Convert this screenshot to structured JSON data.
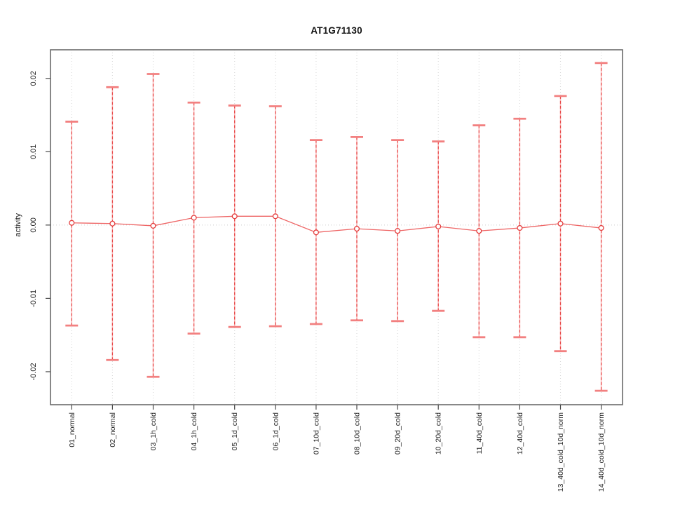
{
  "page": {
    "background": "#ffffff"
  },
  "chart_data": {
    "type": "line",
    "subtype": "errorbar-means",
    "title": "AT1G71130",
    "xlabel": "",
    "ylabel": "activity",
    "legend": "none",
    "categories": [
      "01_normal",
      "02_normal",
      "03_1h_cold",
      "04_1h_cold",
      "05_1d_cold",
      "06_1d_cold",
      "07_10d_cold",
      "08_10d_cold",
      "09_20d_cold",
      "10_20d_cold",
      "11_40d_cold",
      "12_40d_cold",
      "13_40d_cold_10d_norm",
      "14_40d_cold_10d_norm"
    ],
    "series": [
      {
        "name": "activity",
        "means": [
          0.0003,
          0.0002,
          -0.0001,
          0.001,
          0.0012,
          0.0012,
          -0.001,
          -0.0005,
          -0.0008,
          -0.0002,
          -0.0008,
          -0.0004,
          0.0002,
          -0.0004
        ],
        "upper": [
          0.0141,
          0.0188,
          0.0206,
          0.0167,
          0.0163,
          0.0162,
          0.0116,
          0.012,
          0.0116,
          0.0114,
          0.0136,
          0.0145,
          0.0176,
          0.0221
        ],
        "lower": [
          -0.0137,
          -0.0184,
          -0.0207,
          -0.0148,
          -0.0139,
          -0.0138,
          -0.0135,
          -0.013,
          -0.0131,
          -0.0117,
          -0.0153,
          -0.0153,
          -0.0172,
          -0.0226
        ]
      }
    ],
    "yticks": [
      -0.02,
      -0.01,
      0,
      0.01,
      0.02
    ],
    "ytick_labels": [
      "-0.02",
      "-0.01",
      "0.00",
      "0.01",
      "0.02"
    ],
    "ylim": [
      -0.0245,
      0.0239
    ],
    "grid": {
      "vertical": "dotted line at every category",
      "horizontal": "dotted line at y=0 only"
    },
    "x_labels_rotated": true,
    "colors": {
      "point": "#e43c3c",
      "point_fill": "#ffffff",
      "errorbar_dash": "#e84848",
      "errorbar_underlay": "#f9b6b6",
      "cap": "#f28080",
      "line": "#ee6565",
      "grid": "#d8d8d8",
      "zero_line": "#cccccc",
      "box": "#6a6a6a",
      "tick": "#4a4a4a",
      "tick_text": "#222222",
      "title_text": "#111111"
    }
  }
}
